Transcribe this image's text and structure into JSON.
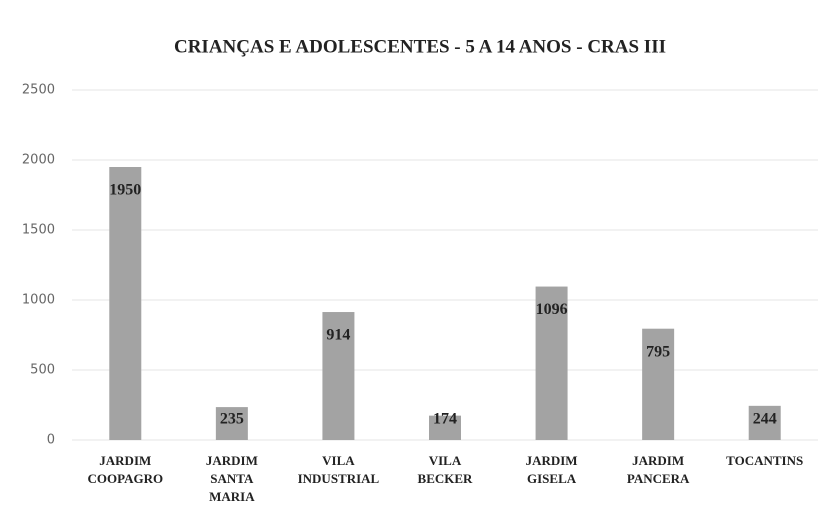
{
  "chart_data": {
    "type": "bar",
    "title": "CRIANÇAS E ADOLESCENTES - 5 A 14 ANOS - CRAS III",
    "categories": [
      "JARDIM COOPAGRO",
      "JARDIM SANTA MARIA",
      "VILA INDUSTRIAL",
      "VILA BECKER",
      "JARDIM GISELA",
      "JARDIM PANCERA",
      "TOCANTINS"
    ],
    "values": [
      1950,
      235,
      914,
      174,
      1096,
      795,
      244
    ],
    "color": "#a3a3a3",
    "ylim": [
      0,
      2500
    ],
    "yticks": [
      0,
      500,
      1000,
      1500,
      2000,
      2500
    ],
    "grid": true
  }
}
